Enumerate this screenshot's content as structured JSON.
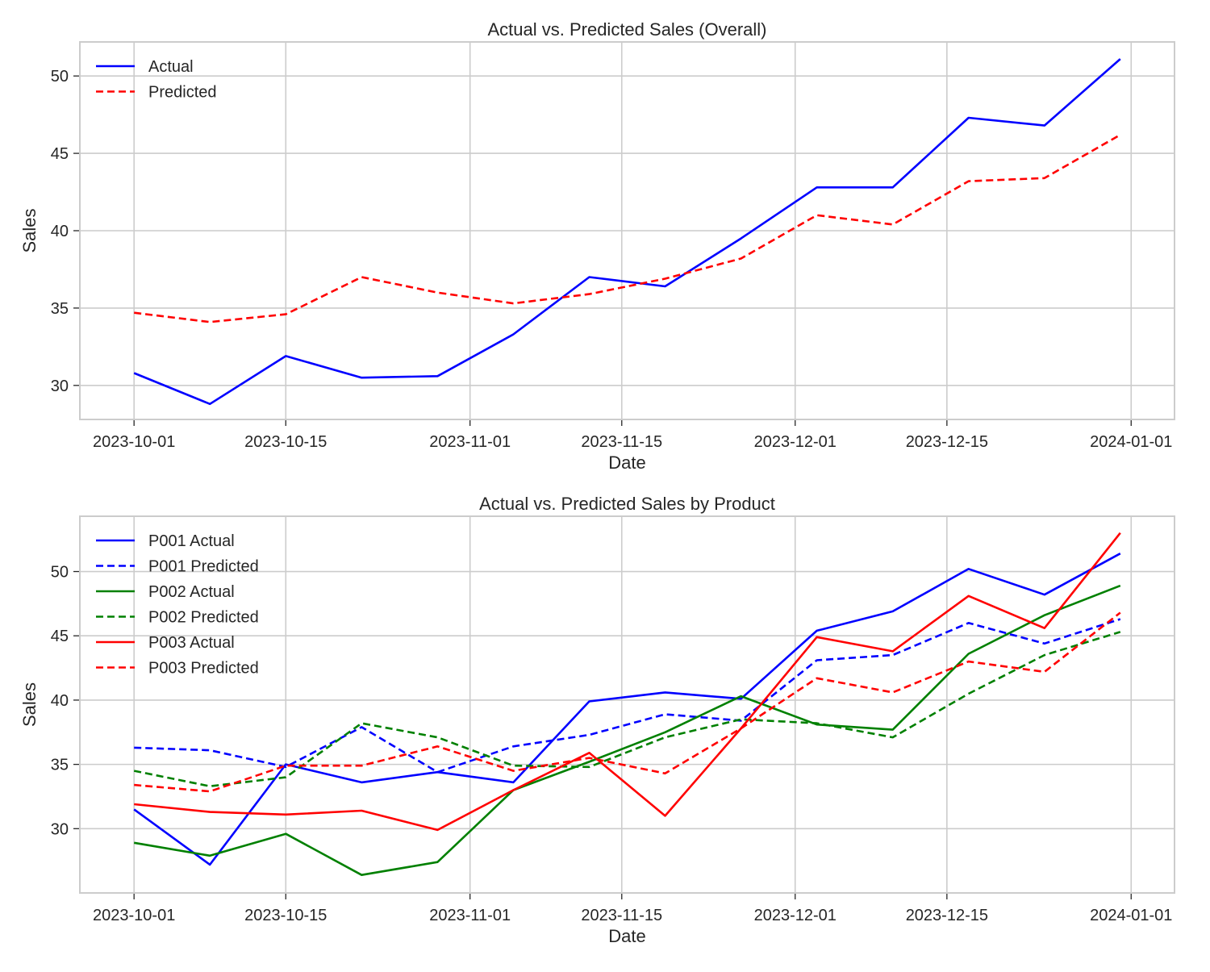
{
  "chart_data": [
    {
      "type": "line",
      "title": "Actual vs. Predicted Sales (Overall)",
      "xlabel": "Date",
      "ylabel": "Sales",
      "x": [
        "2023-10-01",
        "2023-10-08",
        "2023-10-15",
        "2023-10-22",
        "2023-10-29",
        "2023-11-05",
        "2023-11-12",
        "2023-11-19",
        "2023-11-26",
        "2023-12-03",
        "2023-12-10",
        "2023-12-17",
        "2023-12-24",
        "2023-12-31"
      ],
      "xlim": [
        "2023-09-26",
        "2024-01-05"
      ],
      "ylim": [
        27.8,
        52.2
      ],
      "xticks": [
        "2023-10-01",
        "2023-10-15",
        "2023-11-01",
        "2023-11-15",
        "2023-12-01",
        "2023-12-15",
        "2024-01-01"
      ],
      "yticks": [
        30,
        35,
        40,
        45,
        50
      ],
      "grid": true,
      "legend_position": "upper-left",
      "series": [
        {
          "name": "Actual",
          "color": "#0000ff",
          "style": "solid",
          "values": [
            30.8,
            28.8,
            31.9,
            30.5,
            30.6,
            33.3,
            37.0,
            36.4,
            39.5,
            42.8,
            42.8,
            47.3,
            46.8,
            51.1
          ]
        },
        {
          "name": "Predicted",
          "color": "#ff0000",
          "style": "dashed",
          "values": [
            34.7,
            34.1,
            34.6,
            37.0,
            36.0,
            35.3,
            35.9,
            36.9,
            38.2,
            41.0,
            40.4,
            43.2,
            43.4,
            46.2
          ]
        }
      ]
    },
    {
      "type": "line",
      "title": "Actual vs. Predicted Sales by Product",
      "xlabel": "Date",
      "ylabel": "Sales",
      "x": [
        "2023-10-01",
        "2023-10-08",
        "2023-10-15",
        "2023-10-22",
        "2023-10-29",
        "2023-11-05",
        "2023-11-12",
        "2023-11-19",
        "2023-11-26",
        "2023-12-03",
        "2023-12-10",
        "2023-12-17",
        "2023-12-24",
        "2023-12-31"
      ],
      "xlim": [
        "2023-09-26",
        "2024-01-05"
      ],
      "ylim": [
        25.0,
        54.3
      ],
      "xticks": [
        "2023-10-01",
        "2023-10-15",
        "2023-11-01",
        "2023-11-15",
        "2023-12-01",
        "2023-12-15",
        "2024-01-01"
      ],
      "yticks": [
        30,
        35,
        40,
        45,
        50
      ],
      "grid": true,
      "legend_position": "upper-left",
      "series": [
        {
          "name": "P001 Actual",
          "color": "#0000ff",
          "style": "solid",
          "values": [
            31.5,
            27.2,
            35.0,
            33.6,
            34.4,
            33.6,
            39.9,
            40.6,
            40.1,
            45.4,
            46.9,
            50.2,
            48.2,
            51.4
          ]
        },
        {
          "name": "P001 Predicted",
          "color": "#0000ff",
          "style": "dashed",
          "values": [
            36.3,
            36.1,
            34.8,
            37.9,
            34.4,
            36.4,
            37.3,
            38.9,
            38.4,
            43.1,
            43.5,
            46.0,
            44.4,
            46.3
          ]
        },
        {
          "name": "P002 Actual",
          "color": "#008000",
          "style": "solid",
          "values": [
            28.9,
            27.9,
            29.6,
            26.4,
            27.4,
            33.0,
            35.2,
            37.5,
            40.3,
            38.1,
            37.7,
            43.6,
            46.6,
            48.9
          ]
        },
        {
          "name": "P002 Predicted",
          "color": "#008000",
          "style": "dashed",
          "values": [
            34.5,
            33.3,
            34.0,
            38.2,
            37.1,
            34.9,
            34.8,
            37.1,
            38.5,
            38.2,
            37.1,
            40.5,
            43.5,
            45.3
          ]
        },
        {
          "name": "P003 Actual",
          "color": "#ff0000",
          "style": "solid",
          "values": [
            31.9,
            31.3,
            31.1,
            31.4,
            29.9,
            33.0,
            35.9,
            31.0,
            37.8,
            44.9,
            43.8,
            48.1,
            45.6,
            53.0
          ]
        },
        {
          "name": "P003 Predicted",
          "color": "#ff0000",
          "style": "dashed",
          "values": [
            33.4,
            32.9,
            34.9,
            34.9,
            36.4,
            34.5,
            35.5,
            34.3,
            37.8,
            41.7,
            40.6,
            43.0,
            42.2,
            46.8
          ]
        }
      ]
    }
  ]
}
